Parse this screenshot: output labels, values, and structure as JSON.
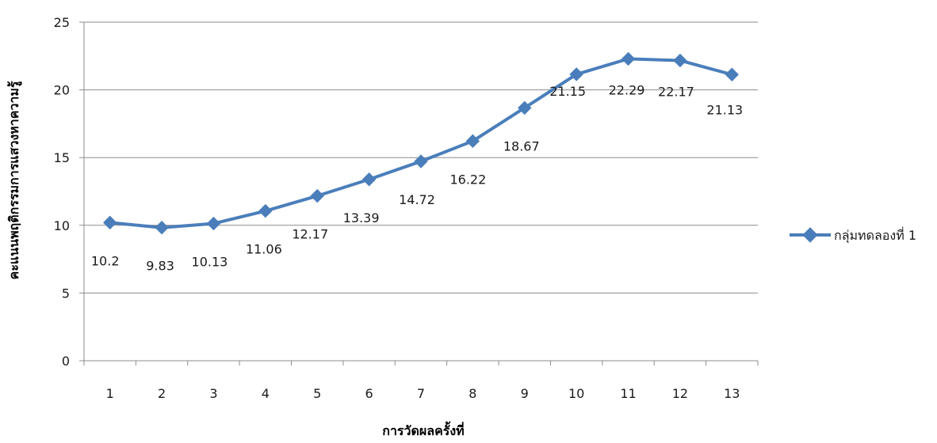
{
  "chart_data": {
    "type": "line",
    "categories": [
      "1",
      "2",
      "3",
      "4",
      "5",
      "6",
      "7",
      "8",
      "9",
      "10",
      "11",
      "12",
      "13"
    ],
    "series": [
      {
        "name": "กลุ่มทดลองที่ 1",
        "values": [
          10.2,
          9.83,
          10.13,
          11.06,
          12.17,
          13.39,
          14.72,
          16.22,
          18.67,
          21.15,
          22.29,
          22.17,
          21.13
        ],
        "color": "#4a7ebb",
        "marker": "diamond"
      }
    ],
    "data_labels": [
      "10.2",
      "9.83",
      "10.13",
      "11.06",
      "12.17",
      "13.39",
      "14.72",
      "16.22",
      "18.67",
      "21.15",
      "22.29",
      "22.17",
      "21.13"
    ],
    "y_ticks": [
      "0",
      "5",
      "10",
      "15",
      "20",
      "25"
    ],
    "xlabel": "การวัดผลครั้งที่",
    "ylabel": "คะแนนพฤติกรรมการแสวงหาความรู้",
    "ylim": [
      0,
      25
    ],
    "grid": "horizontal",
    "legend_position": "right"
  }
}
